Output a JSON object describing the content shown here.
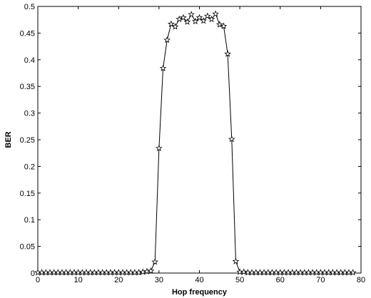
{
  "chart_data": {
    "type": "line",
    "title": "",
    "xlabel": "Hop frequency",
    "ylabel": "BER",
    "xlim": [
      0,
      80
    ],
    "ylim": [
      0,
      0.5
    ],
    "xticks": [
      0,
      10,
      20,
      30,
      40,
      50,
      60,
      70,
      80
    ],
    "yticks": [
      0,
      0.05,
      0.1,
      0.15,
      0.2,
      0.25,
      0.3,
      0.35,
      0.4,
      0.45,
      0.5
    ],
    "grid": false,
    "marker": "star",
    "line_color": "#000000",
    "series": [
      {
        "x": [
          0,
          1,
          2,
          3,
          4,
          5,
          6,
          7,
          8,
          9,
          10,
          11,
          12,
          13,
          14,
          15,
          16,
          17,
          18,
          19,
          20,
          21,
          22,
          23,
          24,
          25,
          26,
          27,
          28,
          29,
          30,
          31,
          32,
          33,
          34,
          35,
          36,
          37,
          38,
          39,
          40,
          41,
          42,
          43,
          44,
          45,
          46,
          47,
          48,
          49,
          50,
          51,
          52,
          53,
          54,
          55,
          56,
          57,
          58,
          59,
          60,
          61,
          62,
          63,
          64,
          65,
          66,
          67,
          68,
          69,
          70,
          71,
          72,
          73,
          74,
          75,
          76,
          77,
          78
        ],
        "y": [
          0.001,
          0.001,
          0.001,
          0.001,
          0.001,
          0.001,
          0.001,
          0.001,
          0.001,
          0.001,
          0.001,
          0.001,
          0.001,
          0.001,
          0.001,
          0.001,
          0.001,
          0.001,
          0.001,
          0.001,
          0.001,
          0.001,
          0.001,
          0.001,
          0.001,
          0.001,
          0.002,
          0.003,
          0.004,
          0.021,
          0.234,
          0.384,
          0.437,
          0.467,
          0.462,
          0.476,
          0.479,
          0.471,
          0.485,
          0.472,
          0.479,
          0.473,
          0.482,
          0.476,
          0.486,
          0.466,
          0.463,
          0.411,
          0.251,
          0.022,
          0.002,
          0.002,
          0.001,
          0.001,
          0.001,
          0.001,
          0.001,
          0.001,
          0.001,
          0.001,
          0.001,
          0.001,
          0.001,
          0.001,
          0.001,
          0.001,
          0.001,
          0.001,
          0.001,
          0.001,
          0.001,
          0.001,
          0.001,
          0.001,
          0.001,
          0.001,
          0.001,
          0.001,
          0.001
        ]
      }
    ]
  }
}
